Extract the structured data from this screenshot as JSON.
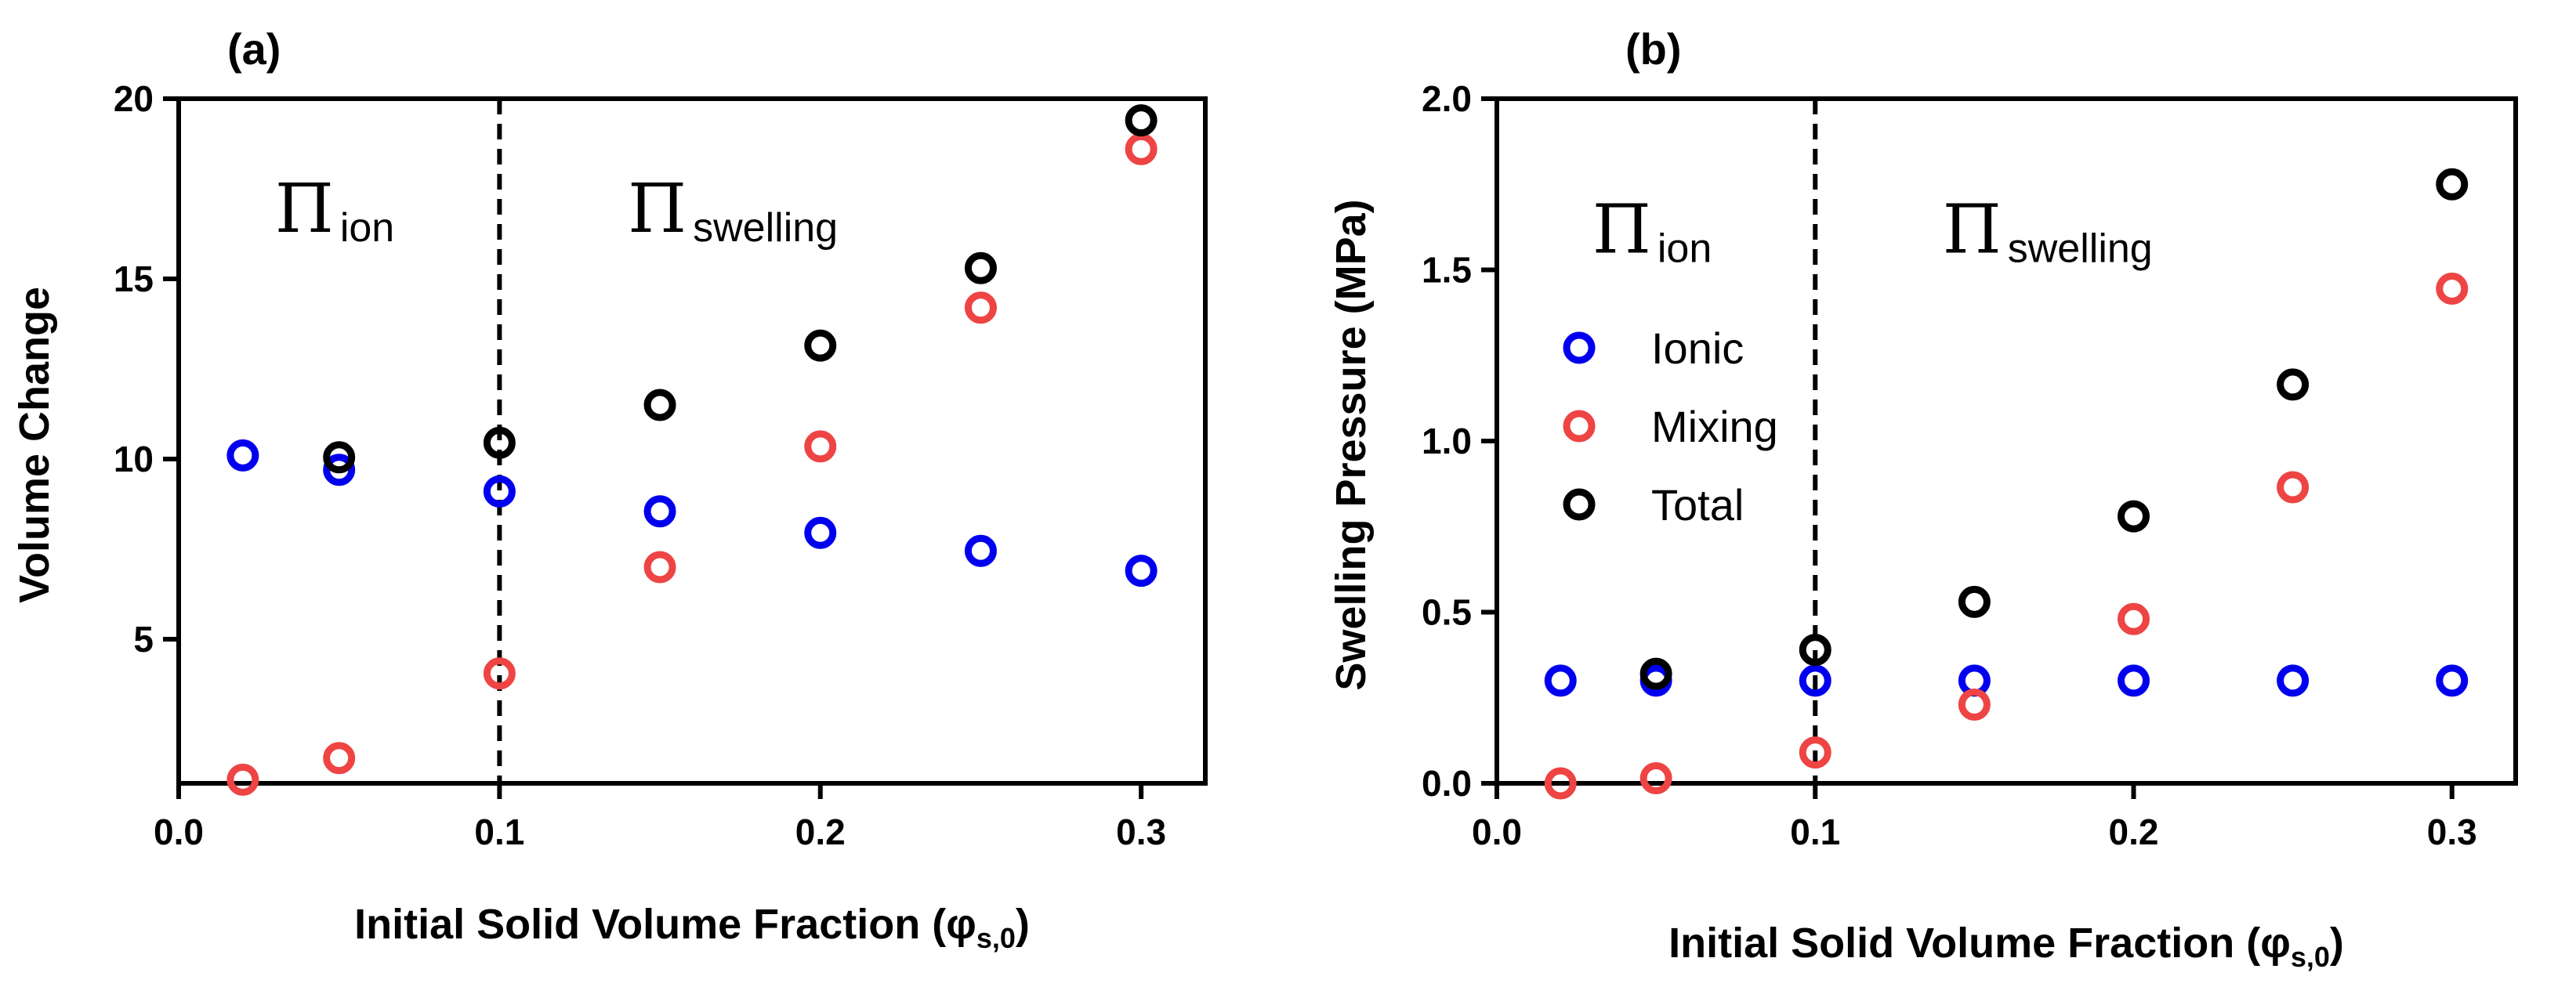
{
  "chart_data": [
    {
      "type": "scatter",
      "panel_label": "(a)",
      "title": "",
      "xlabel": "Initial Solid Volume Fraction (",
      "xlabel_symbol": "φ",
      "xlabel_sub": "s,0",
      "xlabel_close": ")",
      "ylabel": "Volume Change",
      "xlim": [
        0.0,
        0.32
      ],
      "ylim": [
        1.0,
        20.0
      ],
      "xticks": [
        0.0,
        0.1,
        0.2,
        0.3
      ],
      "xtick_labels": [
        "0.0",
        "0.1",
        "0.2",
        "0.3"
      ],
      "yticks": [
        5,
        10,
        15,
        20
      ],
      "ytick_labels": [
        "5",
        "10",
        "15",
        "20"
      ],
      "vline_x": 0.1,
      "annotations": [
        {
          "symbol": "Π",
          "sub": "ion",
          "x": 0.03,
          "y": 16.3
        },
        {
          "symbol": "Π",
          "sub": "swelling",
          "x": 0.14,
          "y": 16.3
        }
      ],
      "series": [
        {
          "color": "#0000ee",
          "x": [
            0.02,
            0.05,
            0.1,
            0.15,
            0.2,
            0.25,
            0.3
          ],
          "y": [
            10.1,
            9.7,
            9.1,
            8.55,
            7.95,
            7.45,
            6.9
          ]
        },
        {
          "color": "#ee4444",
          "x": [
            0.02,
            0.05,
            0.1,
            0.15,
            0.2,
            0.25,
            0.3
          ],
          "y": [
            1.1,
            1.7,
            4.05,
            7.0,
            10.35,
            14.2,
            18.6
          ]
        },
        {
          "color": "#000000",
          "x": [
            0.05,
            0.1,
            0.15,
            0.2,
            0.25,
            0.3
          ],
          "y": [
            10.05,
            10.45,
            11.5,
            13.15,
            15.3,
            19.4
          ]
        }
      ]
    },
    {
      "type": "scatter",
      "panel_label": "(b)",
      "title": "",
      "xlabel": "Initial Solid Volume Fraction (",
      "xlabel_symbol": "φ",
      "xlabel_sub": "s,0",
      "xlabel_close": ")",
      "ylabel": "Swelling Pressure (MPa)",
      "xlim": [
        0.0,
        0.32
      ],
      "ylim": [
        0.0,
        2.0
      ],
      "xticks": [
        0.0,
        0.1,
        0.2,
        0.3
      ],
      "xtick_labels": [
        "0.0",
        "0.1",
        "0.2",
        "0.3"
      ],
      "yticks": [
        0.0,
        0.5,
        1.0,
        1.5,
        2.0
      ],
      "ytick_labels": [
        "0.0",
        "0.5",
        "1.0",
        "1.5",
        "2.0"
      ],
      "vline_x": 0.1,
      "annotations": [
        {
          "symbol": "Π",
          "sub": "ion",
          "x": 0.03,
          "y": 1.55
        },
        {
          "symbol": "Π",
          "sub": "swelling",
          "x": 0.14,
          "y": 1.55
        }
      ],
      "legend_position": "left",
      "series": [
        {
          "name": "Ionic",
          "color": "#0000ee",
          "x": [
            0.02,
            0.05,
            0.1,
            0.15,
            0.2,
            0.25,
            0.3
          ],
          "y": [
            0.3,
            0.3,
            0.3,
            0.3,
            0.3,
            0.3,
            0.3
          ]
        },
        {
          "name": "Mixing",
          "color": "#ee4444",
          "x": [
            0.02,
            0.05,
            0.1,
            0.15,
            0.2,
            0.25,
            0.3
          ],
          "y": [
            0.0,
            0.015,
            0.09,
            0.23,
            0.48,
            0.865,
            1.445
          ]
        },
        {
          "name": "Total",
          "color": "#000000",
          "x": [
            0.05,
            0.1,
            0.15,
            0.2,
            0.25,
            0.3
          ],
          "y": [
            0.32,
            0.39,
            0.53,
            0.78,
            1.165,
            1.75
          ]
        }
      ]
    }
  ]
}
